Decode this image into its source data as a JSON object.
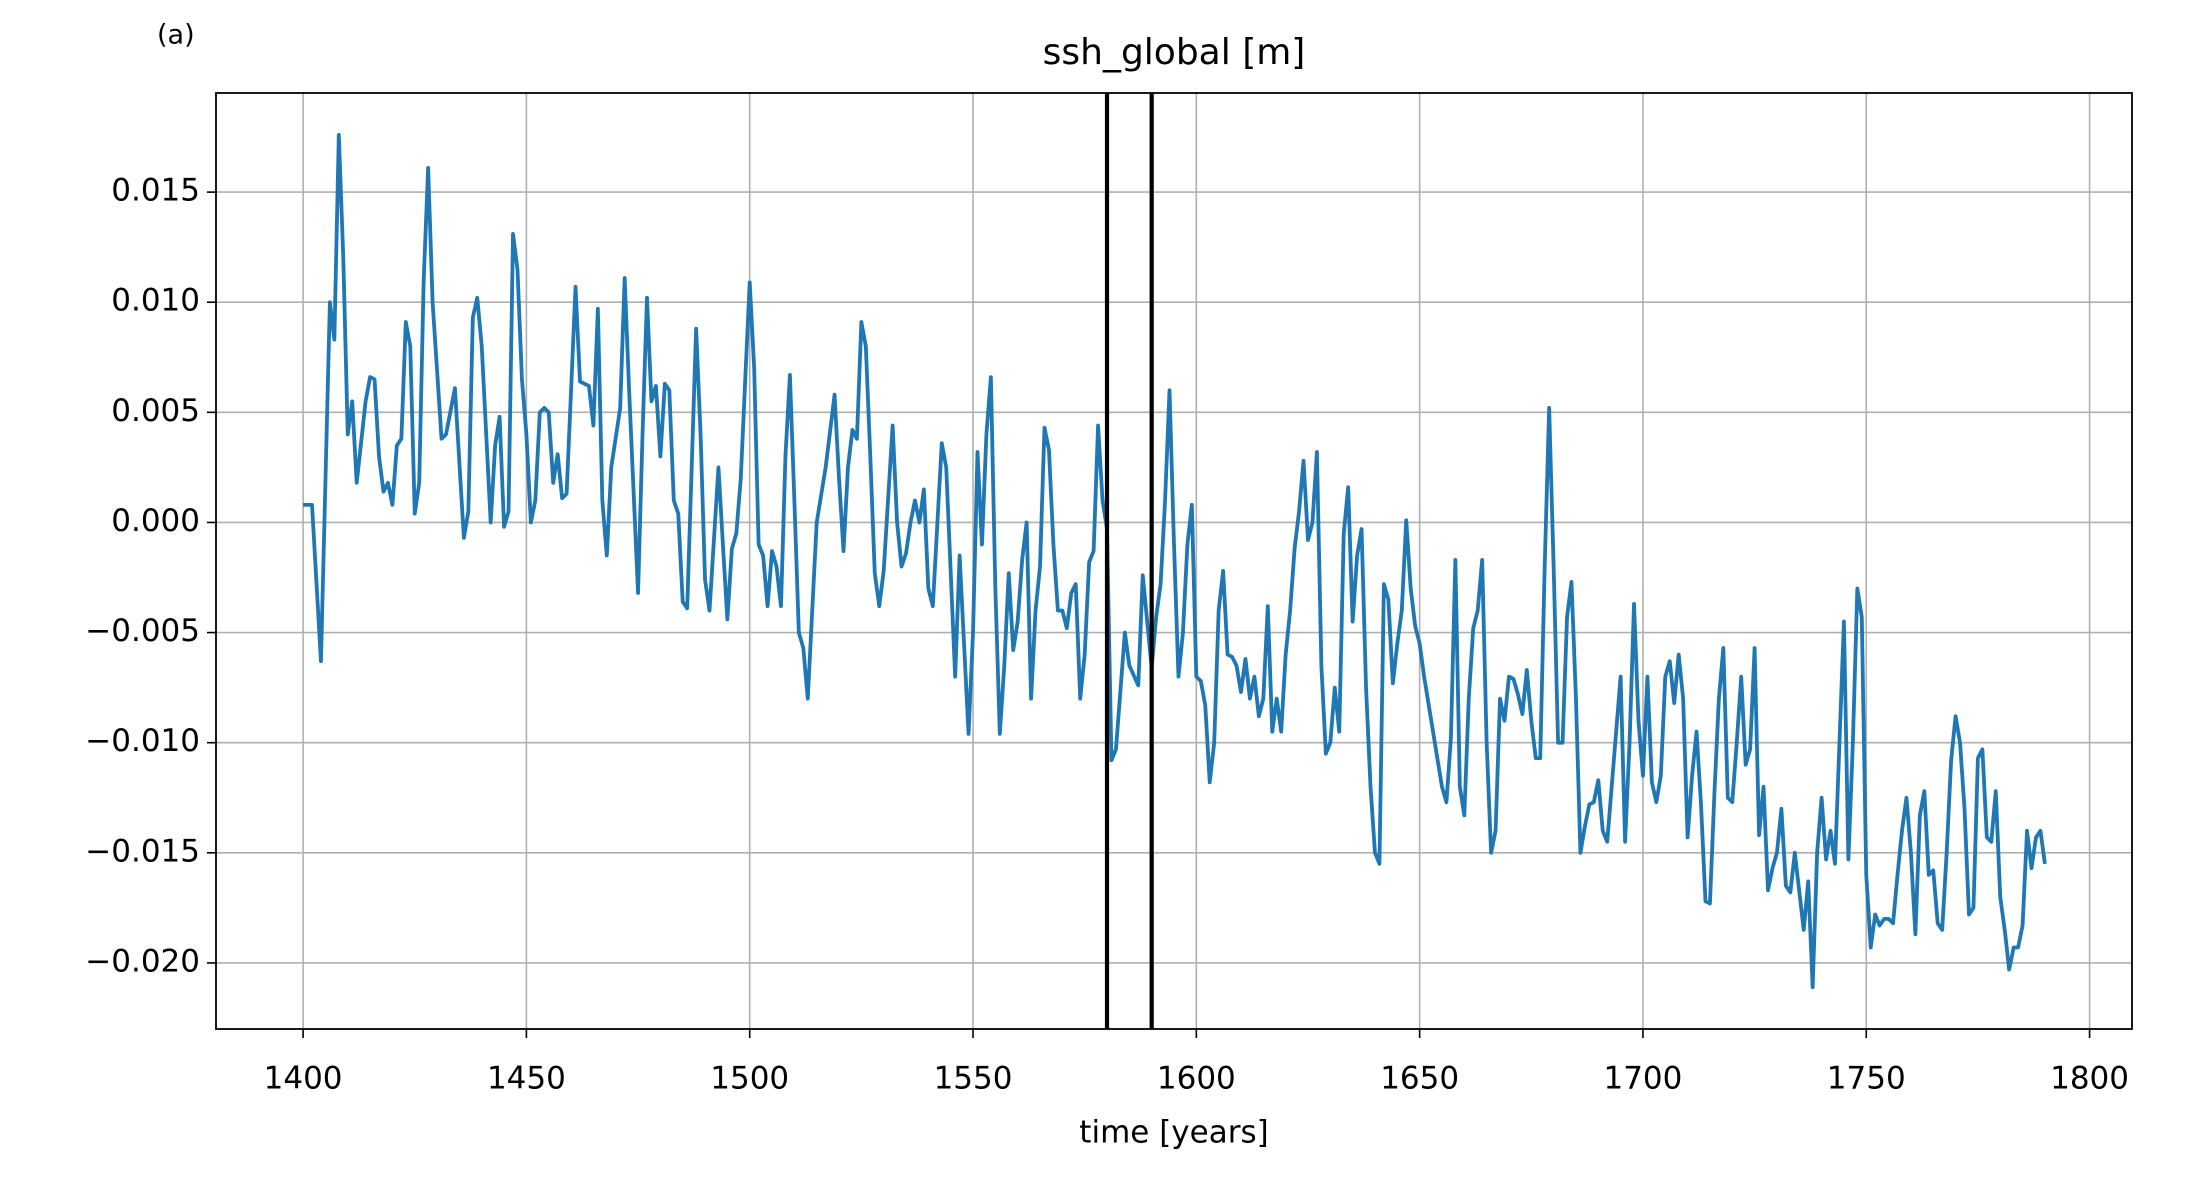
{
  "chart_data": {
    "type": "line",
    "annotation": "(a)",
    "title": "ssh_global [m]",
    "xlabel": "time [years]",
    "xlim": [
      1380.5,
      1809.5
    ],
    "xticks": [
      1400,
      1450,
      1500,
      1550,
      1600,
      1650,
      1700,
      1750,
      1800
    ],
    "ylim": [
      -0.023,
      0.0195
    ],
    "yticks": [
      {
        "value": -0.02,
        "label": "−0.020"
      },
      {
        "value": -0.015,
        "label": "−0.015"
      },
      {
        "value": -0.01,
        "label": "−0.010"
      },
      {
        "value": -0.005,
        "label": "−0.005"
      },
      {
        "value": 0,
        "label": "0.000"
      },
      {
        "value": 0.005,
        "label": "0.005"
      },
      {
        "value": 0.01,
        "label": "0.010"
      },
      {
        "value": 0.015,
        "label": "0.015"
      }
    ],
    "grid": true,
    "color": "#1f77b4",
    "vlines": [
      1580,
      1590
    ],
    "vline_color": "#000000",
    "x": [
      1400,
      1402,
      1404,
      1406,
      1407,
      1408,
      1409,
      1410,
      1411,
      1412,
      1414,
      1415,
      1416,
      1417,
      1418,
      1419,
      1420,
      1421,
      1422,
      1423,
      1424,
      1425,
      1426,
      1427,
      1428,
      1429,
      1431,
      1432,
      1434,
      1436,
      1437,
      1438,
      1439,
      1440,
      1441,
      1442,
      1443,
      1444,
      1445,
      1446,
      1447,
      1448,
      1449,
      1450,
      1451,
      1452,
      1453,
      1454,
      1455,
      1456,
      1457,
      1458,
      1459,
      1461,
      1462,
      1464,
      1465,
      1466,
      1467,
      1468,
      1469,
      1471,
      1472,
      1473,
      1475,
      1476,
      1477,
      1478,
      1479,
      1480,
      1481,
      1482,
      1483,
      1484,
      1485,
      1486,
      1488,
      1489,
      1490,
      1491,
      1493,
      1494,
      1495,
      1496,
      1497,
      1498,
      1499,
      1500,
      1501,
      1502,
      1503,
      1504,
      1505,
      1506,
      1507,
      1508,
      1509,
      1510,
      1511,
      1512,
      1513,
      1515,
      1517,
      1519,
      1520,
      1521,
      1522,
      1523,
      1524,
      1525,
      1526,
      1527,
      1528,
      1529,
      1530,
      1532,
      1533,
      1534,
      1535,
      1536,
      1537,
      1538,
      1539,
      1540,
      1541,
      1543,
      1544,
      1546,
      1547,
      1549,
      1550,
      1551,
      1552,
      1553,
      1554,
      1555,
      1556,
      1557,
      1558,
      1559,
      1560,
      1561,
      1562,
      1563,
      1564,
      1565,
      1566,
      1567,
      1568,
      1569,
      1570,
      1571,
      1572,
      1573,
      1574,
      1575,
      1576,
      1577,
      1578,
      1579,
      1580,
      1581,
      1582,
      1584,
      1585,
      1587,
      1588,
      1590,
      1591,
      1592,
      1593,
      1594,
      1595,
      1596,
      1597,
      1598,
      1599,
      1600,
      1601,
      1602,
      1603,
      1604,
      1605,
      1606,
      1607,
      1608,
      1609,
      1610,
      1611,
      1612,
      1613,
      1614,
      1615,
      1616,
      1617,
      1618,
      1619,
      1620,
      1621,
      1622,
      1623,
      1624,
      1625,
      1626,
      1627,
      1628,
      1629,
      1630,
      1631,
      1632,
      1633,
      1634,
      1635,
      1636,
      1637,
      1638,
      1639,
      1640,
      1641,
      1642,
      1643,
      1644,
      1645,
      1646,
      1647,
      1648,
      1649,
      1650,
      1651,
      1655,
      1656,
      1657,
      1658,
      1659,
      1660,
      1661,
      1662,
      1663,
      1664,
      1665,
      1666,
      1667,
      1668,
      1669,
      1670,
      1671,
      1672,
      1673,
      1674,
      1675,
      1676,
      1677,
      1678,
      1679,
      1680,
      1681,
      1682,
      1683,
      1684,
      1685,
      1686,
      1687,
      1688,
      1689,
      1690,
      1691,
      1692,
      1695,
      1696,
      1697,
      1698,
      1699,
      1700,
      1701,
      1702,
      1703,
      1704,
      1705,
      1706,
      1707,
      1708,
      1709,
      1710,
      1711,
      1712,
      1713,
      1714,
      1715,
      1716,
      1717,
      1718,
      1719,
      1720,
      1721,
      1722,
      1723,
      1724,
      1725,
      1726,
      1727,
      1728,
      1729,
      1730,
      1731,
      1732,
      1733,
      1734,
      1736,
      1737,
      1738,
      1739,
      1740,
      1741,
      1742,
      1743,
      1744,
      1745,
      1746,
      1747,
      1748,
      1749,
      1750,
      1751,
      1752,
      1753,
      1754,
      1755,
      1756,
      1757,
      1758,
      1759,
      1760,
      1761,
      1762,
      1763,
      1764,
      1765,
      1766,
      1767,
      1768,
      1769,
      1770,
      1771,
      1772,
      1773,
      1774,
      1775,
      1776,
      1777,
      1778,
      1779,
      1780,
      1781,
      1782,
      1783,
      1784,
      1785,
      1786,
      1787,
      1788,
      1789,
      1790
    ],
    "values": [
      0.0008,
      0.0008,
      -0.0063,
      0.01,
      0.0083,
      0.0176,
      0.012,
      0.004,
      0.0055,
      0.0018,
      0.0055,
      0.0066,
      0.0065,
      0.003,
      0.0014,
      0.0018,
      0.0008,
      0.0035,
      0.0038,
      0.0091,
      0.008,
      0.0004,
      0.0018,
      0.011,
      0.0161,
      0.01,
      0.0038,
      0.004,
      0.0061,
      -0.0007,
      0.0005,
      0.0093,
      0.0102,
      0.008,
      0.004,
      0.0,
      0.0035,
      0.0048,
      -0.0002,
      0.0005,
      0.0131,
      0.0115,
      0.0065,
      0.004,
      0.0,
      0.001,
      0.005,
      0.0052,
      0.005,
      0.0018,
      0.0031,
      0.0011,
      0.0013,
      0.0107,
      0.0064,
      0.0062,
      0.0044,
      0.0097,
      0.001,
      -0.0015,
      0.0025,
      0.0052,
      0.0111,
      0.006,
      -0.0032,
      0.004,
      0.0102,
      0.0055,
      0.0062,
      0.003,
      0.0063,
      0.006,
      0.001,
      0.0004,
      -0.0036,
      -0.0039,
      0.0088,
      0.004,
      -0.0026,
      -0.004,
      0.0025,
      -0.001,
      -0.0044,
      -0.0012,
      -0.0005,
      0.002,
      0.0065,
      0.0109,
      0.007,
      -0.001,
      -0.0015,
      -0.0038,
      -0.0013,
      -0.002,
      -0.0038,
      0.003,
      0.0067,
      0.001,
      -0.005,
      -0.0057,
      -0.008,
      0.0,
      0.0025,
      0.0058,
      0.002,
      -0.0013,
      0.0025,
      0.0042,
      0.0038,
      0.0091,
      0.008,
      0.003,
      -0.0023,
      -0.0038,
      -0.0022,
      0.0044,
      0.0,
      -0.002,
      -0.0014,
      0.0,
      0.001,
      0.0,
      0.0015,
      -0.003,
      -0.0038,
      0.0036,
      0.0025,
      -0.007,
      -0.0015,
      -0.0096,
      -0.005,
      0.0032,
      -0.001,
      0.004,
      0.0066,
      -0.003,
      -0.0096,
      -0.0065,
      -0.0023,
      -0.0058,
      -0.0045,
      -0.0017,
      0.0,
      -0.008,
      -0.004,
      -0.002,
      0.0043,
      0.0033,
      -0.001,
      -0.004,
      -0.004,
      -0.0048,
      -0.0032,
      -0.0028,
      -0.008,
      -0.006,
      -0.0018,
      -0.0013,
      0.0044,
      0.001,
      -0.0003,
      -0.0108,
      -0.0103,
      -0.005,
      -0.0065,
      -0.0074,
      -0.0024,
      -0.0066,
      -0.0043,
      -0.0028,
      0.001,
      0.006,
      -0.001,
      -0.007,
      -0.005,
      -0.001,
      0.0008,
      -0.007,
      -0.0072,
      -0.0083,
      -0.0118,
      -0.01,
      -0.004,
      -0.0022,
      -0.006,
      -0.0061,
      -0.0065,
      -0.0077,
      -0.0062,
      -0.008,
      -0.007,
      -0.0088,
      -0.008,
      -0.0038,
      -0.0095,
      -0.008,
      -0.0095,
      -0.006,
      -0.004,
      -0.0012,
      0.0005,
      0.0028,
      -0.0008,
      0.0,
      0.0032,
      -0.0065,
      -0.0105,
      -0.01,
      -0.0075,
      -0.0095,
      -0.0005,
      0.0016,
      -0.0045,
      -0.0015,
      -0.0003,
      -0.0075,
      -0.012,
      -0.015,
      -0.0155,
      -0.0028,
      -0.0035,
      -0.0073,
      -0.0055,
      -0.004,
      0.0001,
      -0.003,
      -0.0047,
      -0.0055,
      -0.007,
      -0.012,
      -0.0127,
      -0.0098,
      -0.0017,
      -0.012,
      -0.0133,
      -0.008,
      -0.0048,
      -0.004,
      -0.0017,
      -0.01,
      -0.015,
      -0.014,
      -0.008,
      -0.009,
      -0.007,
      -0.0071,
      -0.0078,
      -0.0087,
      -0.0067,
      -0.009,
      -0.0107,
      -0.0107,
      -0.002,
      0.0052,
      -0.002,
      -0.01,
      -0.01,
      -0.0043,
      -0.0027,
      -0.008,
      -0.015,
      -0.0138,
      -0.0128,
      -0.0127,
      -0.0117,
      -0.014,
      -0.0145,
      -0.007,
      -0.0145,
      -0.01,
      -0.0037,
      -0.009,
      -0.0115,
      -0.007,
      -0.0118,
      -0.0127,
      -0.0115,
      -0.007,
      -0.0063,
      -0.0082,
      -0.006,
      -0.008,
      -0.0143,
      -0.0115,
      -0.0095,
      -0.0128,
      -0.0172,
      -0.0173,
      -0.0123,
      -0.008,
      -0.0057,
      -0.0125,
      -0.0127,
      -0.01,
      -0.007,
      -0.011,
      -0.0103,
      -0.0057,
      -0.0142,
      -0.012,
      -0.0167,
      -0.0157,
      -0.015,
      -0.013,
      -0.0165,
      -0.0168,
      -0.015,
      -0.0185,
      -0.0163,
      -0.0211,
      -0.015,
      -0.0125,
      -0.0153,
      -0.014,
      -0.0155,
      -0.01,
      -0.0045,
      -0.0153,
      -0.01,
      -0.003,
      -0.0043,
      -0.016,
      -0.0193,
      -0.0178,
      -0.0183,
      -0.018,
      -0.018,
      -0.0182,
      -0.016,
      -0.014,
      -0.0125,
      -0.015,
      -0.0187,
      -0.0133,
      -0.0122,
      -0.016,
      -0.0158,
      -0.0182,
      -0.0185,
      -0.015,
      -0.0108,
      -0.0088,
      -0.01,
      -0.013,
      -0.0178,
      -0.0175,
      -0.0107,
      -0.0103,
      -0.0143,
      -0.0145,
      -0.0122,
      -0.017,
      -0.0185,
      -0.0203,
      -0.0193,
      -0.0193,
      -0.0183,
      -0.014,
      -0.0157,
      -0.0143,
      -0.014,
      -0.0155
    ]
  }
}
